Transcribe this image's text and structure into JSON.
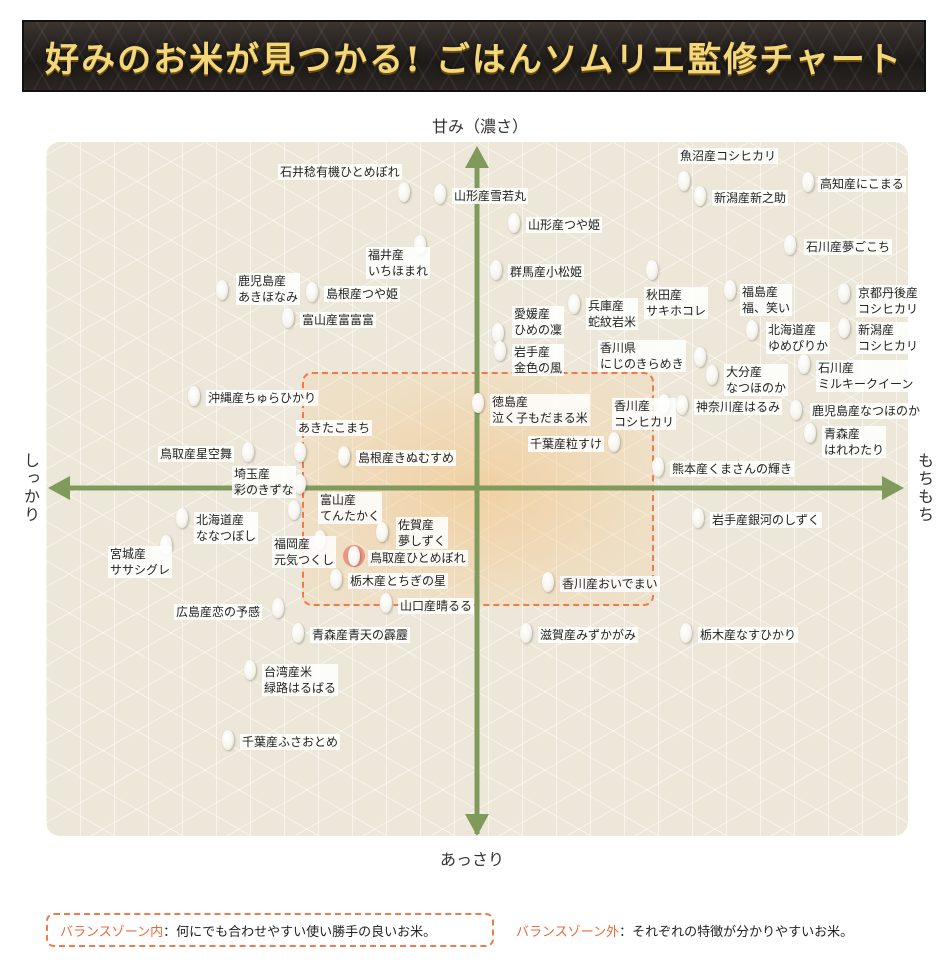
{
  "title": "好みのお米が見つかる! ごはんソムリエ監修チャート",
  "axes": {
    "top": "甘み（濃さ）",
    "bottom": "あっさり",
    "left": "しっかり",
    "right": "もちもち"
  },
  "legend": {
    "inside_key": "バランスゾーン内",
    "inside_desc": "：何にでも合わせやすい使い勝手の良いお米。",
    "outside_key": "バランスゾーン外",
    "outside_desc": "：それぞれの特徴が分かりやすいお米。"
  },
  "varieties": [
    {
      "name": "魚沼産コシヒカリ"
    },
    {
      "name": "高知産にこまる"
    },
    {
      "name": "新潟産新之助"
    },
    {
      "name": "石井稔有機ひとめぼれ"
    },
    {
      "name": "山形産雪若丸"
    },
    {
      "name": "山形産つや姫"
    },
    {
      "name": "石川産夢ごこち"
    },
    {
      "name": "福井産\nいちほまれ"
    },
    {
      "name": "群馬産小松姫"
    },
    {
      "name": "鹿児島産\nあきほなみ"
    },
    {
      "name": "島根産つや姫"
    },
    {
      "name": "秋田産\nサキホコレ"
    },
    {
      "name": "福島産\n福、笑い"
    },
    {
      "name": "京都丹後産\nコシヒカリ"
    },
    {
      "name": "兵庫産\n蛇紋岩米"
    },
    {
      "name": "富山産富富富"
    },
    {
      "name": "愛媛産\nひめの凜"
    },
    {
      "name": "北海道産\nゆめぴりか"
    },
    {
      "name": "新潟産\nコシヒカリ"
    },
    {
      "name": "岩手産\n金色の風"
    },
    {
      "name": "香川県\nにじのきらめき"
    },
    {
      "name": "大分産\nなつほのか"
    },
    {
      "name": "石川産\nミルキークイーン"
    },
    {
      "name": "沖縄産ちゅらひかり"
    },
    {
      "name": "徳島産\n泣く子もだまる米"
    },
    {
      "name": "香川産\nコシヒカリ"
    },
    {
      "name": "神奈川産はるみ"
    },
    {
      "name": "鹿児島産なつほのか"
    },
    {
      "name": "あきたこまち"
    },
    {
      "name": "青森産\nはれわたり"
    },
    {
      "name": "千葉産粒すけ"
    },
    {
      "name": "鳥取産星空舞"
    },
    {
      "name": "島根産きぬむすめ"
    },
    {
      "name": "熊本産くまさんの輝き"
    },
    {
      "name": "埼玉産\n彩のきずな"
    },
    {
      "name": "富山産\nてんたかく"
    },
    {
      "name": "北海道産\nななつぼし"
    },
    {
      "name": "佐賀産\n夢しずく"
    },
    {
      "name": "岩手産銀河のしずく"
    },
    {
      "name": "福岡産\n元気つくし"
    },
    {
      "name": "宮城産\nササシグレ"
    },
    {
      "name": "鳥取産ひとめぼれ"
    },
    {
      "name": "栃木産とちぎの星"
    },
    {
      "name": "香川産おいでまい"
    },
    {
      "name": "広島産恋の予感"
    },
    {
      "name": "山口産晴るる"
    },
    {
      "name": "青森産青天の霹靂"
    },
    {
      "name": "滋賀産みずかがみ"
    },
    {
      "name": "栃木産なすひかり"
    },
    {
      "name": "台湾産米\n緑路はるばる"
    },
    {
      "name": "千葉産ふさおとめ"
    }
  ]
}
